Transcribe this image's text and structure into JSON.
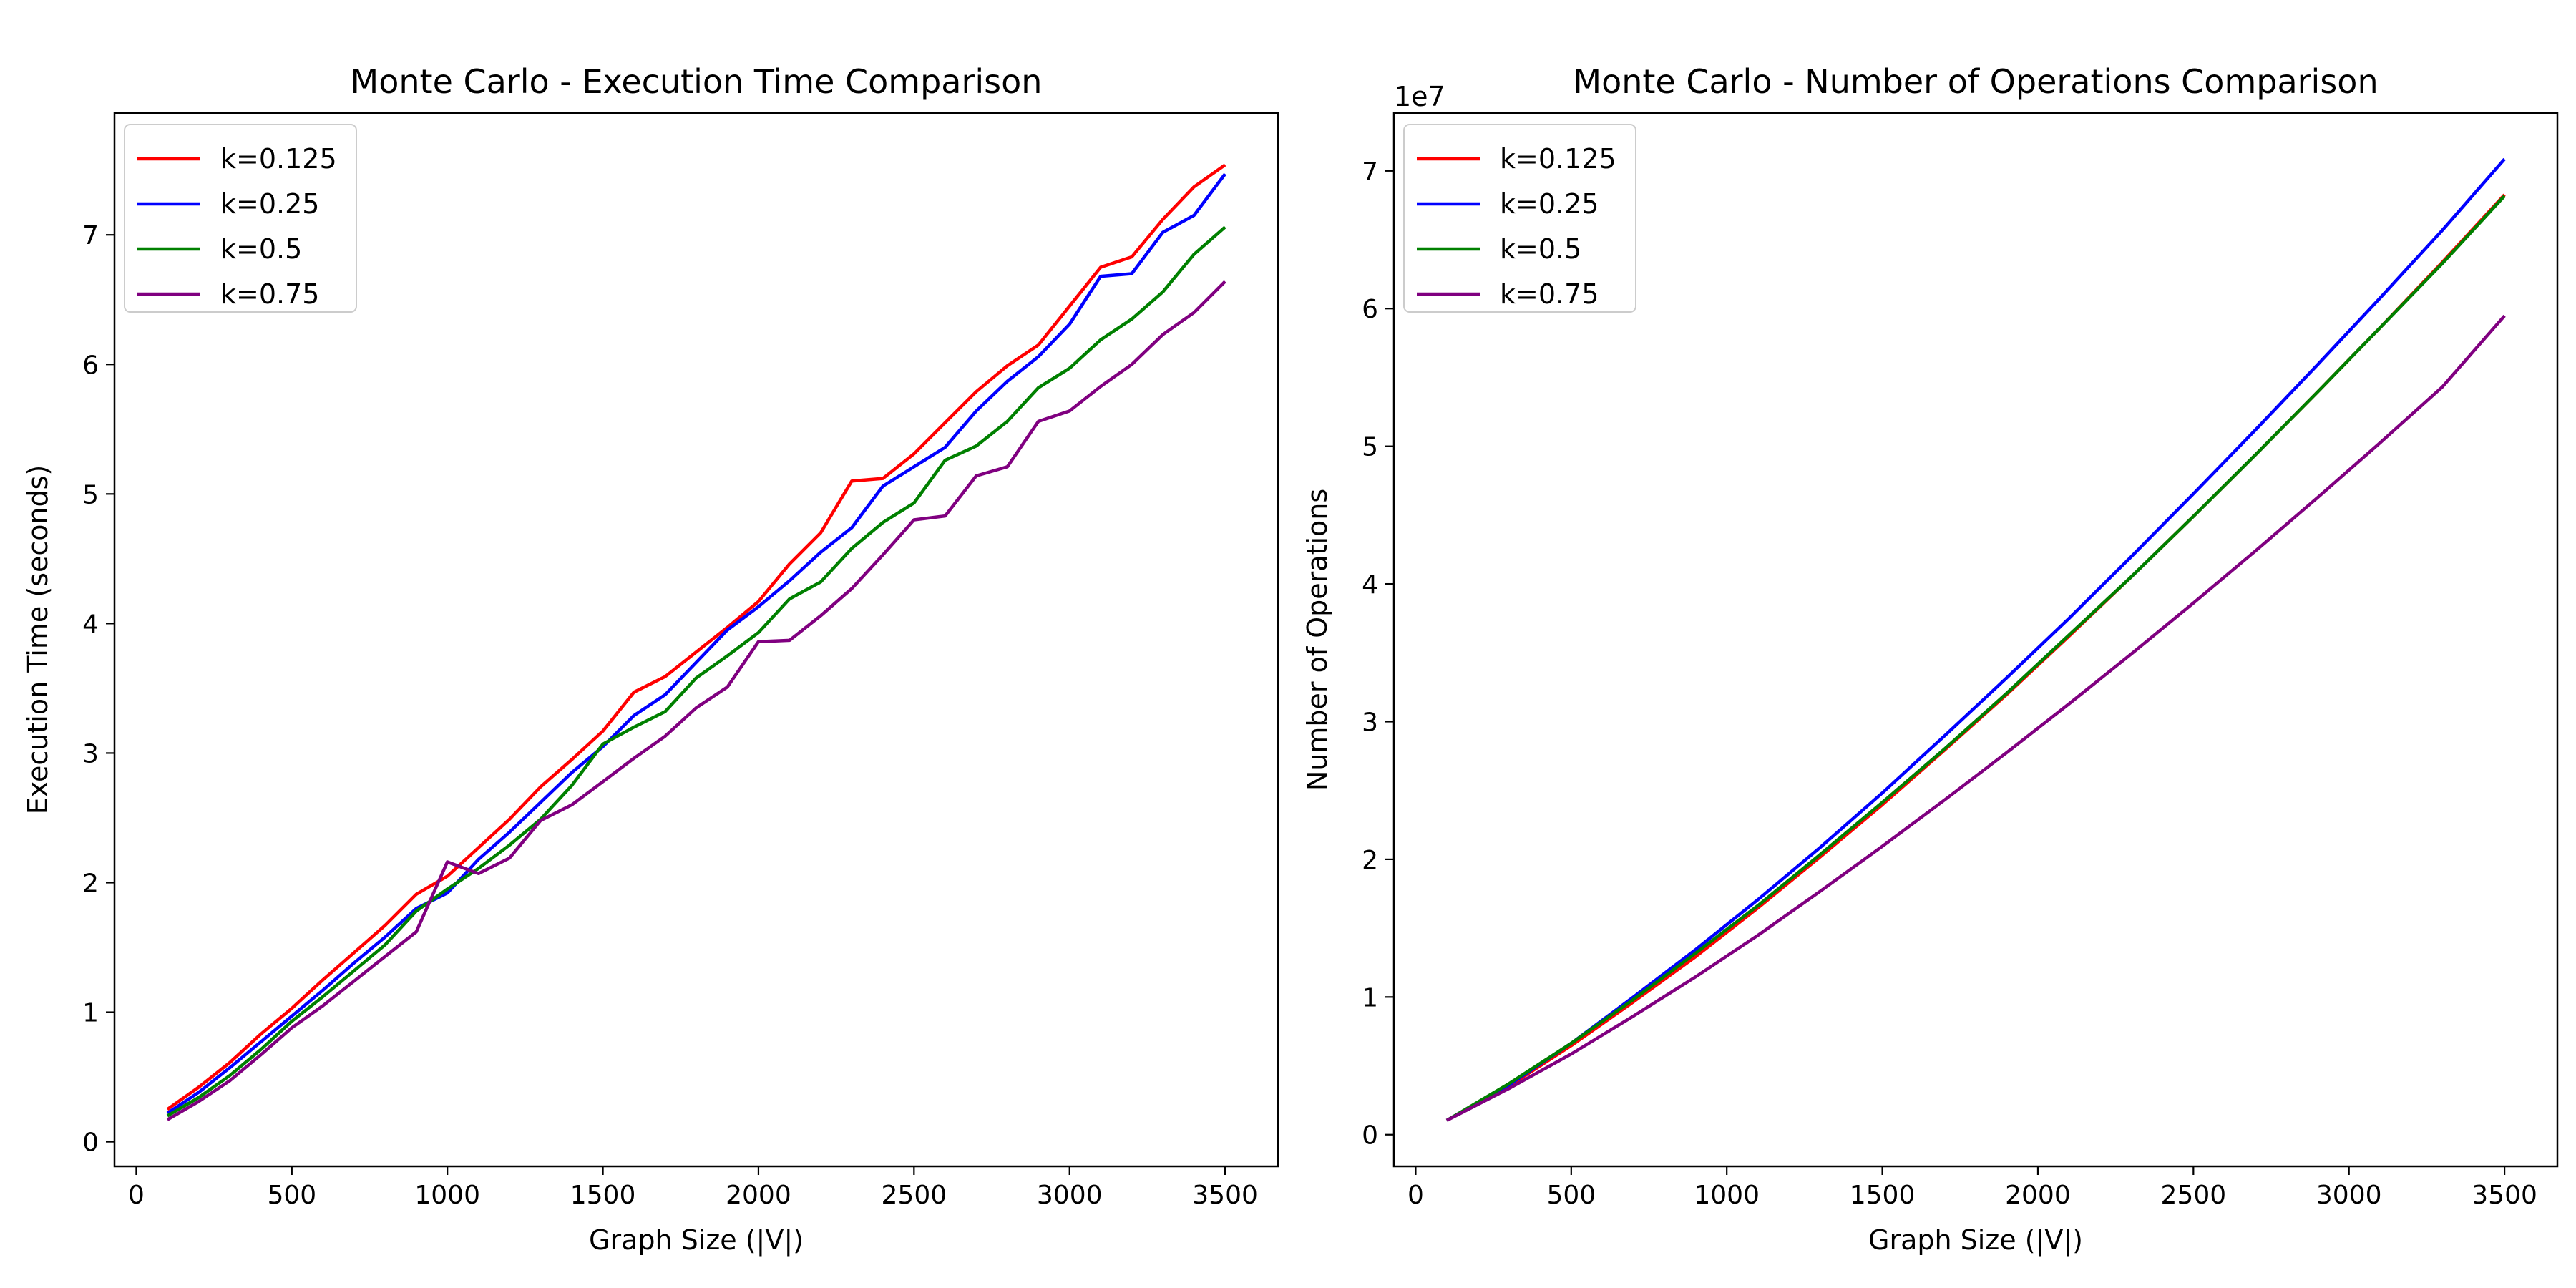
{
  "chart_data": [
    {
      "type": "line",
      "title": "Monte Carlo - Execution Time Comparison",
      "xlabel": "Graph Size (|V|)",
      "ylabel": "Execution Time (seconds)",
      "xlim": [
        -70,
        3670
      ],
      "ylim": [
        -0.19,
        7.94
      ],
      "xticks": [
        0,
        500,
        1000,
        1500,
        2000,
        2500,
        3000,
        3500
      ],
      "yticks": [
        0,
        1,
        2,
        3,
        4,
        5,
        6,
        7
      ],
      "grid": false,
      "legend_position": "top-left",
      "x": [
        100,
        200,
        300,
        400,
        500,
        600,
        700,
        800,
        900,
        1000,
        1100,
        1200,
        1300,
        1400,
        1500,
        1600,
        1700,
        1800,
        1900,
        2000,
        2100,
        2200,
        2300,
        2400,
        2500,
        2600,
        2700,
        2800,
        2900,
        3000,
        3100,
        3200,
        3300,
        3400,
        3500
      ],
      "series": [
        {
          "name": "k=0.125",
          "color": "#ff0000",
          "values": [
            0.25,
            0.42,
            0.61,
            0.83,
            1.03,
            1.25,
            1.46,
            1.67,
            1.91,
            2.05,
            2.27,
            2.49,
            2.74,
            2.95,
            3.17,
            3.47,
            3.59,
            3.78,
            3.97,
            4.17,
            4.46,
            4.7,
            5.1,
            5.12,
            5.31,
            5.55,
            5.79,
            5.99,
            6.15,
            6.45,
            6.75,
            6.83,
            7.12,
            7.37,
            7.54
          ]
        },
        {
          "name": "k=0.25",
          "color": "#0000ff",
          "values": [
            0.22,
            0.38,
            0.57,
            0.77,
            0.97,
            1.17,
            1.38,
            1.58,
            1.8,
            1.92,
            2.18,
            2.39,
            2.62,
            2.85,
            3.05,
            3.29,
            3.45,
            3.7,
            3.95,
            4.13,
            4.33,
            4.55,
            4.74,
            5.06,
            5.21,
            5.36,
            5.64,
            5.87,
            6.06,
            6.31,
            6.68,
            6.7,
            7.02,
            7.15,
            7.47
          ]
        },
        {
          "name": "k=0.5",
          "color": "#008000",
          "values": [
            0.2,
            0.34,
            0.51,
            0.71,
            0.93,
            1.12,
            1.32,
            1.52,
            1.78,
            1.95,
            2.11,
            2.29,
            2.49,
            2.75,
            3.07,
            3.2,
            3.32,
            3.58,
            3.75,
            3.93,
            4.19,
            4.32,
            4.58,
            4.78,
            4.93,
            5.26,
            5.37,
            5.56,
            5.82,
            5.97,
            6.19,
            6.35,
            6.56,
            6.85,
            7.06
          ]
        },
        {
          "name": "k=0.75",
          "color": "#800080",
          "values": [
            0.17,
            0.31,
            0.47,
            0.67,
            0.88,
            1.05,
            1.24,
            1.43,
            1.62,
            2.16,
            2.07,
            2.19,
            2.48,
            2.6,
            2.78,
            2.96,
            3.13,
            3.35,
            3.51,
            3.86,
            3.87,
            4.06,
            4.27,
            4.53,
            4.8,
            4.83,
            5.14,
            5.21,
            5.56,
            5.64,
            5.83,
            6.0,
            6.23,
            6.4,
            6.64
          ]
        }
      ]
    },
    {
      "type": "line",
      "title": "Monte Carlo - Number of Operations Comparison",
      "xlabel": "Graph Size (|V|)",
      "ylabel": "Number of Operations",
      "y_offset_label": "1e7",
      "xlim": [
        -70,
        3670
      ],
      "ylim": [
        -0.23,
        7.42
      ],
      "xticks": [
        0,
        500,
        1000,
        1500,
        2000,
        2500,
        3000,
        3500
      ],
      "yticks": [
        0,
        1,
        2,
        3,
        4,
        5,
        6,
        7
      ],
      "grid": false,
      "legend_position": "top-left",
      "x": [
        100,
        300,
        500,
        700,
        900,
        1100,
        1300,
        1500,
        1700,
        1900,
        2100,
        2300,
        2500,
        2700,
        2900,
        3100,
        3300,
        3500
      ],
      "series": [
        {
          "name": "k=0.125",
          "color": "#ff0000",
          "values": [
            0.12,
            0.41,
            0.75,
            1.12,
            1.5,
            1.91,
            2.34,
            2.78,
            3.24,
            3.71,
            4.2,
            4.7,
            5.21,
            5.73,
            6.26,
            6.8,
            7.35,
            7.92
          ]
        },
        {
          "name": "k=0.25",
          "color": "#0000ff",
          "values": [
            0.12,
            0.42,
            0.77,
            1.16,
            1.56,
            1.98,
            2.42,
            2.88,
            3.36,
            3.85,
            4.35,
            4.87,
            5.4,
            5.94,
            6.49,
            7.05,
            7.62,
            8.22
          ]
        },
        {
          "name": "k=0.5",
          "color": "#008000",
          "values": [
            0.12,
            0.43,
            0.77,
            1.14,
            1.53,
            1.93,
            2.36,
            2.8,
            3.25,
            3.72,
            4.21,
            4.7,
            5.21,
            5.73,
            6.26,
            6.8,
            7.34,
            7.91
          ]
        },
        {
          "name": "k=0.75",
          "color": "#800080",
          "values": [
            0.12,
            0.39,
            0.68,
            1.0,
            1.33,
            1.68,
            2.05,
            2.43,
            2.82,
            3.22,
            3.63,
            4.05,
            4.48,
            4.92,
            5.37,
            5.83,
            6.3,
            6.9
          ]
        }
      ],
      "value_scale": 0.862
    }
  ]
}
